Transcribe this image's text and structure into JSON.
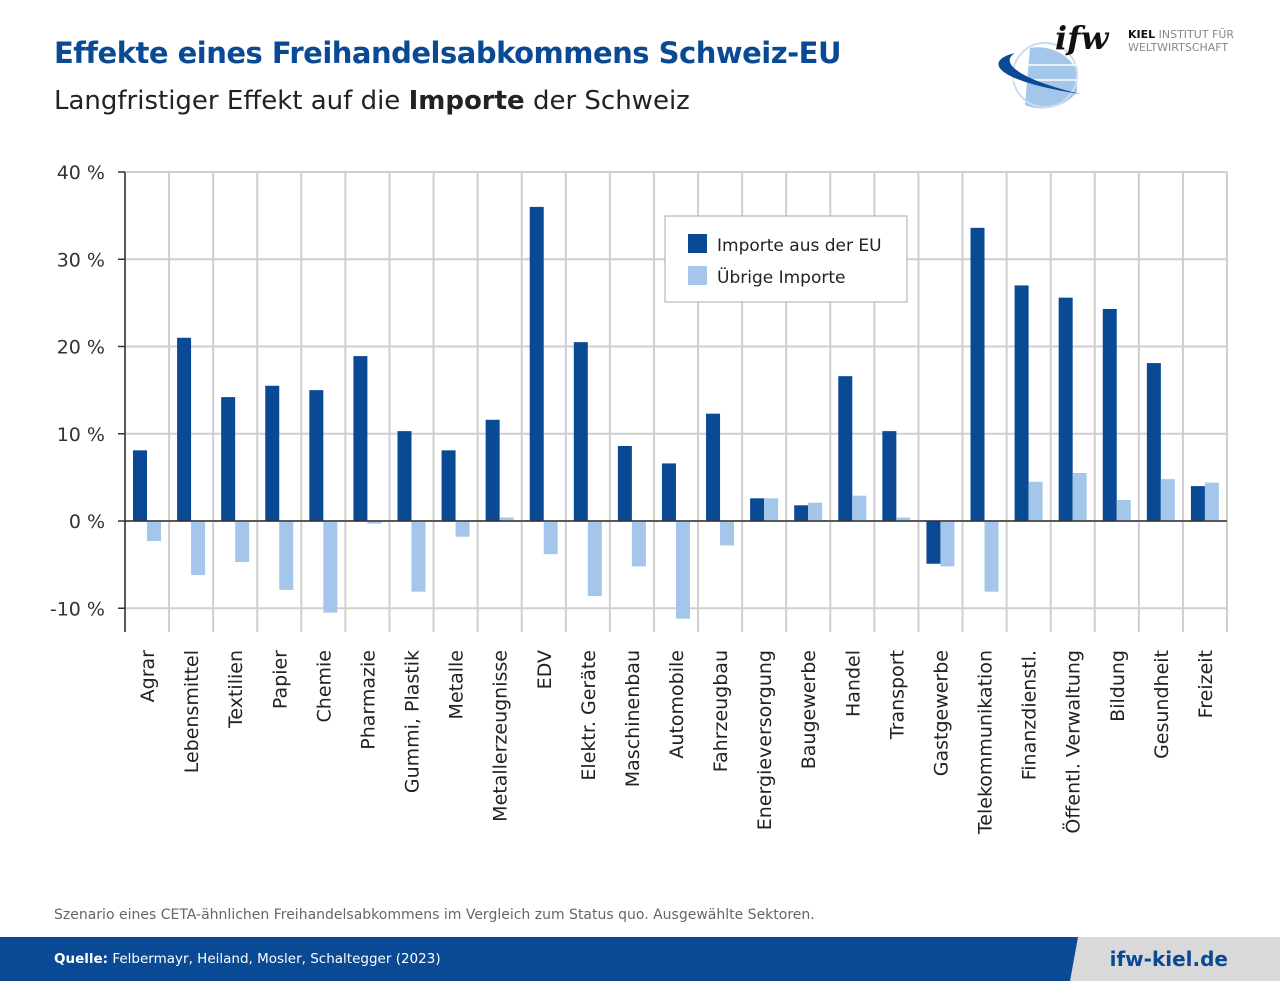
{
  "header": {
    "title": "Effekte eines Freihandelsabkommens Schweiz-EU",
    "subtitle_pre": "Langfristiger Effekt auf die ",
    "subtitle_bold": "Importe",
    "subtitle_post": " der Schweiz"
  },
  "logo": {
    "mark": "ifw",
    "line1_bold": "KIEL",
    "line1": " INSTITUT FÜR",
    "line2": "WELTWIRTSCHAFT"
  },
  "note": "Szenario eines CETA-ähnlichen Freihandelsabkommens im Vergleich zum Status quo. Ausgewählte Sektoren.",
  "footer": {
    "source_label": "Quelle:",
    "source": " Felbermayr, Heiland, Mosler, Schaltegger (2023)",
    "url": "ifw-kiel.de"
  },
  "colors": {
    "eu": "#0a4a94",
    "other": "#a4c6ea",
    "brand": "#0a4a94"
  },
  "chart_data": {
    "type": "bar",
    "title": "",
    "xlabel": "",
    "ylabel": "",
    "ylim": [
      -12.7,
      40
    ],
    "yticks": [
      -10,
      0,
      10,
      20,
      30,
      40
    ],
    "ytick_labels": [
      "-10 %",
      "0 %",
      "10 %",
      "20 %",
      "30 %",
      "40 %"
    ],
    "grid": true,
    "legend_position": "top-center",
    "categories": [
      "Agrar",
      "Lebensmittel",
      "Textilien",
      "Papier",
      "Chemie",
      "Pharmazie",
      "Gummi, Plastik",
      "Metalle",
      "Metallerzeugnisse",
      "EDV",
      "Elektr. Geräte",
      "Maschinenbau",
      "Automobile",
      "Fahrzeugbau",
      "Energieversorgung",
      "Baugewerbe",
      "Handel",
      "Transport",
      "Gastgewerbe",
      "Telekommunikation",
      "Finanzdienstl.",
      "Öffentl. Verwaltung",
      "Bildung",
      "Gesundheit",
      "Freizeit"
    ],
    "series": [
      {
        "name": "Importe aus der EU",
        "color": "#0a4a94",
        "values": [
          8.1,
          21.0,
          14.2,
          15.5,
          15.0,
          18.9,
          10.3,
          8.1,
          11.6,
          36.0,
          20.5,
          8.6,
          6.6,
          12.3,
          2.6,
          1.8,
          16.6,
          10.3,
          -4.9,
          33.6,
          27.0,
          25.6,
          24.3,
          18.1,
          4.0
        ]
      },
      {
        "name": "Übrige Importe",
        "color": "#a4c6ea",
        "values": [
          -2.3,
          -6.2,
          -4.7,
          -7.9,
          -10.5,
          -0.3,
          -8.1,
          -1.8,
          0.4,
          -3.8,
          -8.6,
          -5.2,
          -11.2,
          -2.8,
          2.6,
          2.1,
          2.9,
          0.4,
          -5.2,
          -8.1,
          4.5,
          5.5,
          2.4,
          4.8,
          4.4
        ]
      }
    ]
  }
}
